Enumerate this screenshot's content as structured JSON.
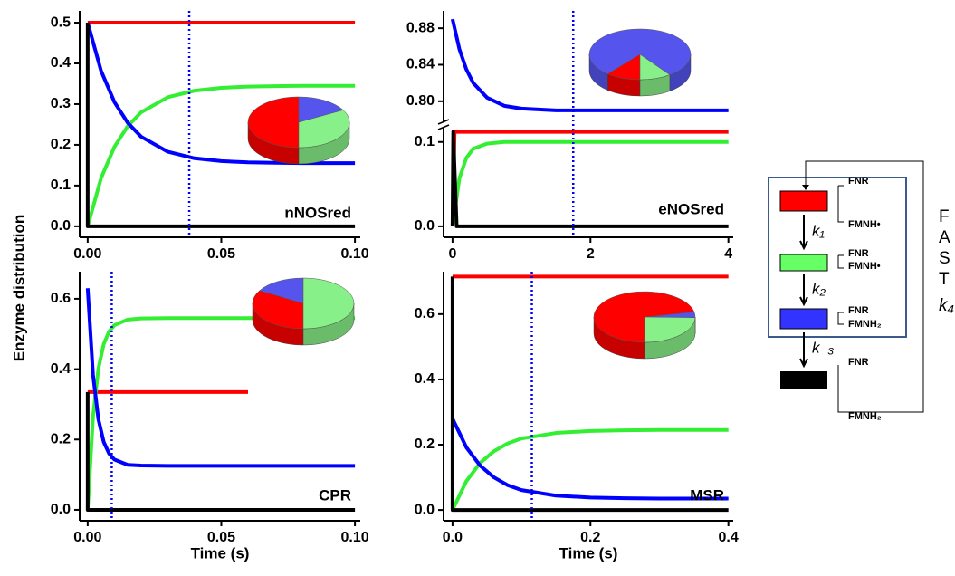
{
  "ylabel": "Enzyme distribution",
  "chart_data": [
    {
      "type": "line",
      "label": "nNOSred",
      "xlim": [
        -0.003,
        0.102
      ],
      "ylim": [
        -0.027,
        0.529
      ],
      "xticks": [
        {
          "value": 0,
          "label": "0.00"
        },
        0.05,
        {
          "value": 0.1,
          "label": "0.10"
        }
      ],
      "yticks": [
        {
          "value": 0,
          "label": "0.0"
        },
        0.1,
        0.2,
        0.3,
        0.4,
        0.5
      ],
      "vline": 0.038,
      "vline_color": "#0000ff",
      "series": [
        {
          "color": "#ff0000",
          "x": [
            0,
            0.1
          ],
          "values": [
            0.5,
            0.5
          ]
        },
        {
          "color": "#33ee33",
          "x": [
            0,
            0.005,
            0.01,
            0.015,
            0.02,
            0.03,
            0.04,
            0.05,
            0.06,
            0.07,
            0.08,
            0.1
          ],
          "values": [
            0,
            0.118,
            0.195,
            0.246,
            0.28,
            0.317,
            0.333,
            0.34,
            0.343,
            0.344,
            0.345,
            0.345
          ]
        },
        {
          "color": "#0000ff",
          "x": [
            0,
            0.005,
            0.01,
            0.015,
            0.02,
            0.03,
            0.04,
            0.05,
            0.06,
            0.07,
            0.08,
            0.1
          ],
          "values": [
            0.5,
            0.382,
            0.305,
            0.254,
            0.22,
            0.183,
            0.167,
            0.16,
            0.157,
            0.156,
            0.155,
            0.155
          ]
        },
        {
          "color": "#000000",
          "x": [
            0,
            0,
            0.1
          ],
          "values": [
            0.5,
            0,
            0
          ]
        }
      ],
      "inset": {
        "type": "pie",
        "values": [
          0.5,
          0.17,
          0.33
        ],
        "colors": [
          "#ff0000",
          "#5555ee",
          "#88f088"
        ]
      }
    },
    {
      "type": "line",
      "label": "eNOSred",
      "xlim": [
        -0.13,
        4.07
      ],
      "ylim": [
        -0.013,
        0.118
      ],
      "ylim_top": [
        0.777,
        0.899
      ],
      "xticks": [
        0,
        2,
        4
      ],
      "yticks": [
        {
          "value": 0,
          "label": "0.0"
        },
        0.1
      ],
      "yticks_top": [
        {
          "value": 0.8,
          "label": "0.80"
        },
        0.84,
        0.88
      ],
      "vline": 1.75,
      "vline_color": "#0000ff",
      "series": [
        {
          "color": "#ff0000",
          "x": [
            0,
            0.03,
            4
          ],
          "values": [
            0,
            0.112,
            0.112
          ]
        },
        {
          "color": "#33ee33",
          "x": [
            0,
            0.1,
            0.2,
            0.3,
            0.5,
            0.75,
            1,
            1.5,
            2,
            3,
            4
          ],
          "values": [
            0,
            0.057,
            0.081,
            0.092,
            0.098,
            0.1,
            0.1,
            0.1,
            0.1,
            0.1,
            0.1
          ]
        },
        {
          "color": "#0000ff",
          "x": [
            0,
            0.1,
            0.2,
            0.3,
            0.5,
            0.75,
            1,
            1.5,
            2,
            3,
            4
          ],
          "values": [
            0.89,
            0.857,
            0.835,
            0.82,
            0.804,
            0.795,
            0.792,
            0.79,
            0.79,
            0.79,
            0.79
          ]
        },
        {
          "color": "#000000",
          "x": [
            0,
            0.01,
            0.06,
            4
          ],
          "values": [
            0,
            0.112,
            0,
            0
          ]
        }
      ],
      "inset": {
        "type": "pie",
        "values": [
          0.11,
          0.79,
          0.1
        ],
        "colors": [
          "#ff0000",
          "#5555ee",
          "#88f088"
        ]
      }
    },
    {
      "type": "line",
      "label": "CPR",
      "xlabel": "Time (s)",
      "xlim": [
        -0.003,
        0.102
      ],
      "ylim": [
        -0.031,
        0.677
      ],
      "xticks": [
        {
          "value": 0,
          "label": "0.00"
        },
        0.05,
        {
          "value": 0.1,
          "label": "0.10"
        }
      ],
      "yticks": [
        {
          "value": 0,
          "label": "0.0"
        },
        0.2,
        0.4,
        0.6
      ],
      "vline": 0.009,
      "vline_color": "#0000ff",
      "series": [
        {
          "color": "#ff0000",
          "x": [
            0,
            0.06
          ],
          "values": [
            0.335,
            0.335
          ]
        },
        {
          "color": "#33ee33",
          "x": [
            0,
            0.002,
            0.004,
            0.006,
            0.008,
            0.01,
            0.015,
            0.02,
            0.03,
            0.05,
            0.1
          ],
          "values": [
            0,
            0.265,
            0.401,
            0.471,
            0.507,
            0.525,
            0.541,
            0.544,
            0.545,
            0.545,
            0.545
          ]
        },
        {
          "color": "#0000ff",
          "x": [
            0,
            0.002,
            0.004,
            0.006,
            0.008,
            0.01,
            0.015,
            0.02,
            0.03,
            0.05,
            0.1
          ],
          "values": [
            0.63,
            0.384,
            0.258,
            0.193,
            0.16,
            0.143,
            0.128,
            0.126,
            0.125,
            0.125,
            0.125
          ]
        },
        {
          "color": "#000000",
          "x": [
            0,
            0,
            0.1
          ],
          "values": [
            0.335,
            0,
            0
          ]
        }
      ],
      "inset": {
        "type": "pie",
        "values": [
          0.335,
          0.165,
          0.5
        ],
        "colors": [
          "#ff0000",
          "#5555ee",
          "#88f088"
        ]
      }
    },
    {
      "type": "line",
      "label": "MSR",
      "xlabel": "Time (s)",
      "xlim": [
        -0.013,
        0.407
      ],
      "ylim": [
        -0.033,
        0.73
      ],
      "xticks": [
        {
          "value": 0,
          "label": "0.0"
        },
        0.2,
        0.4
      ],
      "yticks": [
        {
          "value": 0,
          "label": "0.0"
        },
        0.2,
        0.4,
        0.6
      ],
      "vline": 0.115,
      "vline_color": "#0000ff",
      "series": [
        {
          "color": "#ff0000",
          "x": [
            0,
            0.4
          ],
          "values": [
            0.715,
            0.715
          ]
        },
        {
          "color": "#33ee33",
          "x": [
            0,
            0.02,
            0.04,
            0.06,
            0.08,
            0.1,
            0.15,
            0.2,
            0.25,
            0.3,
            0.4
          ],
          "values": [
            0,
            0.088,
            0.144,
            0.18,
            0.204,
            0.219,
            0.236,
            0.242,
            0.244,
            0.245,
            0.245
          ]
        },
        {
          "color": "#0000ff",
          "x": [
            0,
            0.02,
            0.04,
            0.06,
            0.08,
            0.1,
            0.15,
            0.2,
            0.25,
            0.3,
            0.4
          ],
          "values": [
            0.28,
            0.192,
            0.136,
            0.1,
            0.076,
            0.061,
            0.044,
            0.038,
            0.036,
            0.035,
            0.035
          ]
        },
        {
          "color": "#000000",
          "x": [
            0,
            0,
            0.4
          ],
          "values": [
            0.715,
            0,
            0
          ]
        }
      ],
      "inset": {
        "type": "pie",
        "values": [
          0.715,
          0.035,
          0.245
        ],
        "colors": [
          "#ff0000",
          "#5555ee",
          "#88f088"
        ]
      }
    }
  ],
  "scheme": {
    "states": [
      {
        "top": "FNR",
        "bottom": "FMNH•"
      },
      {
        "top": "FNR",
        "bottom": "FMNH•"
      },
      {
        "top": "FNR",
        "bottom": "FMNH₂"
      },
      {
        "top": "FNR",
        "bottom": "FMNH₂"
      }
    ],
    "rates": [
      "k₁",
      "k₂",
      "k₋₃"
    ],
    "side_text": [
      "F",
      "A",
      "S",
      "T",
      "k₄"
    ]
  }
}
